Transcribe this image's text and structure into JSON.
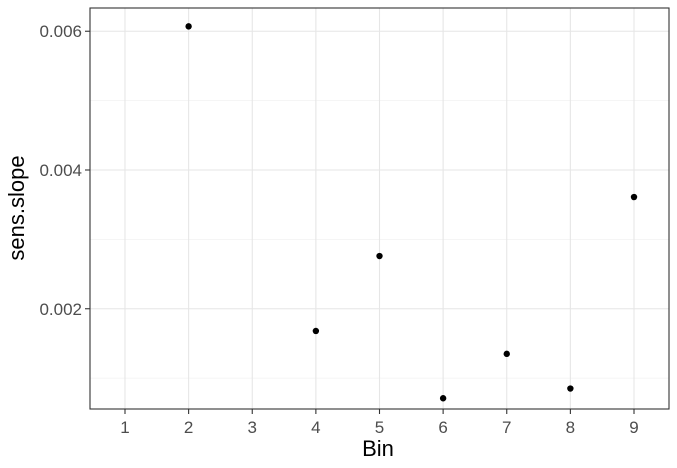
{
  "chart_data": {
    "type": "scatter",
    "title": "",
    "xlabel": "Bin",
    "ylabel": "sens.slope",
    "xlim": [
      0.45,
      9.55
    ],
    "ylim": [
      0.000555,
      0.006335
    ],
    "x_ticks": [
      {
        "value": 1,
        "label": "1"
      },
      {
        "value": 2,
        "label": "2"
      },
      {
        "value": 3,
        "label": "3"
      },
      {
        "value": 4,
        "label": "4"
      },
      {
        "value": 5,
        "label": "5"
      },
      {
        "value": 6,
        "label": "6"
      },
      {
        "value": 7,
        "label": "7"
      },
      {
        "value": 8,
        "label": "8"
      },
      {
        "value": 9,
        "label": "9"
      }
    ],
    "y_ticks": [
      {
        "value": 0.002,
        "label": "0.002"
      },
      {
        "value": 0.004,
        "label": "0.004"
      },
      {
        "value": 0.006,
        "label": "0.006"
      }
    ],
    "y_minor_gridlines": [
      0.001,
      0.003,
      0.005
    ],
    "grid": true,
    "points": [
      {
        "x": 2,
        "y": 0.00607
      },
      {
        "x": 4,
        "y": 0.00168
      },
      {
        "x": 5,
        "y": 0.00276
      },
      {
        "x": 6,
        "y": 0.00071
      },
      {
        "x": 7,
        "y": 0.00135
      },
      {
        "x": 8,
        "y": 0.00085
      },
      {
        "x": 9,
        "y": 0.00361
      }
    ],
    "colors": {
      "point": "#000000",
      "panel_border": "#333333",
      "major_grid": "#e6e6e6",
      "minor_grid": "#f2f2f2",
      "tick_mark": "#333333",
      "tick_label": "#4d4d4d"
    }
  }
}
